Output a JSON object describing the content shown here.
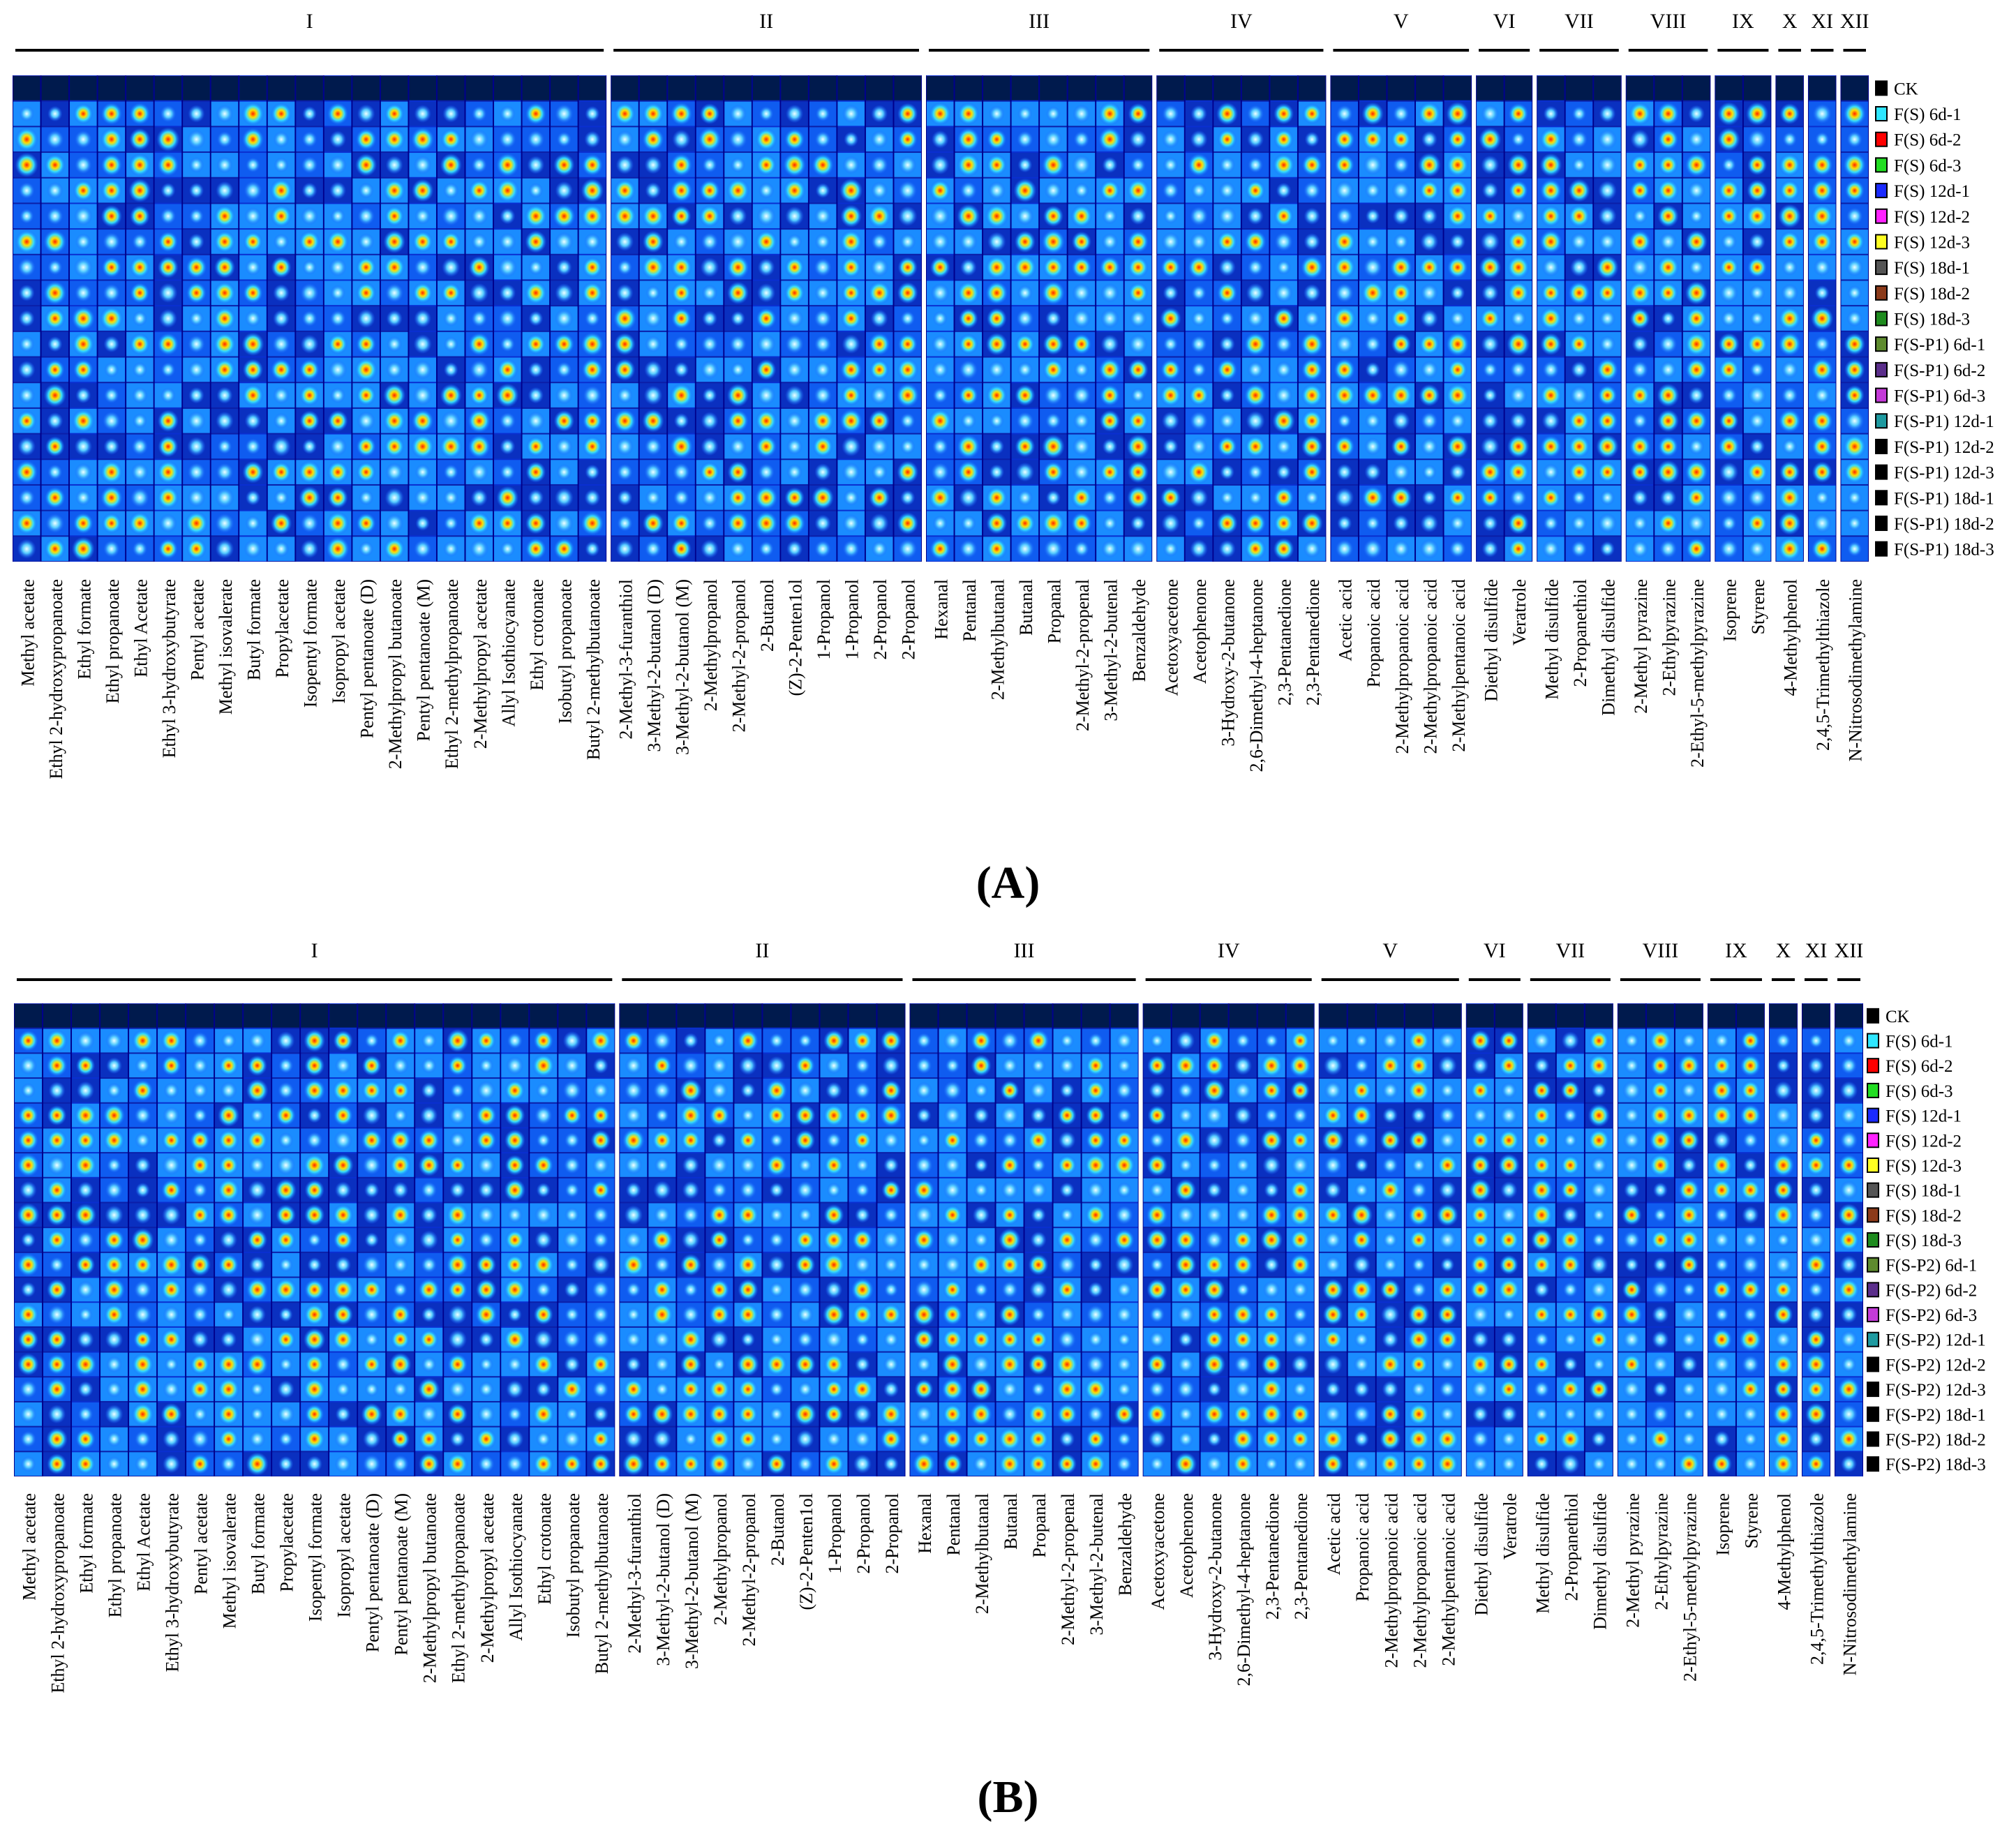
{
  "figure": {
    "colors": {
      "heat_low": "#00008b",
      "heat_mid": "#1e90ff",
      "heat_cyan": "#00e5ff",
      "heat_yellow": "#ffff00",
      "heat_red": "#ff2200",
      "bracket": "#000000"
    },
    "legend_colors": [
      "#000000",
      "#2ee6ff",
      "#ff0000",
      "#22dd22",
      "#1a2aff",
      "#ff22ff",
      "#ffff22",
      "#555555",
      "#8b3a1a",
      "#1e8b1e",
      "#5e8b2e",
      "#5b2e8b",
      "#c43ad8",
      "#1e9aa0",
      "#000000",
      "#000000",
      "#000000",
      "#000000",
      "#000000"
    ],
    "sub_colors": [
      "#f4a030",
      "#e8e030",
      "#ff2020",
      "#d0e020",
      "#50c8f0"
    ]
  },
  "chart_data": [
    {
      "type": "heatmap",
      "title": "(A)",
      "rows": [
        "CK",
        "F(S)  6d-1",
        "F(S)  6d-2",
        "F(S)  6d-3",
        "F(S)  12d-1",
        "F(S)  12d-2",
        "F(S)  12d-3",
        "F(S)  18d-1",
        "F(S)  18d-2",
        "F(S)  18d-3",
        "F(S-P1)  6d-1",
        "F(S-P1)  6d-2",
        "F(S-P1)  6d-3",
        "F(S-P1)  12d-1",
        "F(S-P1)  12d-2",
        "F(S-P1)  12d-3",
        "F(S-P1)  18d-1",
        "F(S-P1)  18d-2",
        "F(S-P1)  18d-3"
      ],
      "groups": [
        {
          "name": "I",
          "columns": [
            "Methyl acetate",
            "Ethyl 2-hydroxypropanoate",
            "Ethyl formate",
            "Ethyl propanoate",
            "Ethyl Acetate",
            "Ethyl 3-hydroxybutyrate",
            "Pentyl acetate",
            "Methyl isovalerate",
            "Butyl formate",
            "Propylacetate",
            "Isopentyl formate",
            "Isopropyl acetate",
            "Pentyl pentanoate  (D)",
            "2-Methylpropyl butanoate",
            "Pentyl pentanoate  (M)",
            "Ethyl 2-methylpropanoate",
            "2-Methylpropyl acetate",
            "Allyl Isothiocyanate",
            "Ethyl crotonate",
            "Isobutyl propanoate",
            "Butyl 2-methylbutanoate"
          ]
        },
        {
          "name": "II",
          "columns": [
            "2-Methyl-3-furanthiol",
            "3-Methyl-2-butanol (D)",
            "3-Methyl-2-butanol (M)",
            "2-Methylpropanol",
            "2-Methyl-2-propanol",
            "2-Butanol",
            "(Z)-2-Penten1ol",
            "1-Propanol",
            "1-Propanol",
            "2-Propanol",
            "2-Propanol"
          ]
        },
        {
          "name": "III",
          "columns": [
            "Hexanal",
            "Pentanal",
            "2-Methylbutanal",
            "Butanal",
            "Propanal",
            "2-Methyl-2-propenal",
            "3-Methyl-2-butenal",
            "Benzaldehyde"
          ]
        },
        {
          "name": "IV",
          "columns": [
            "Acetoxyacetone",
            "Acetophenone",
            "3-Hydroxy-2-butanone",
            "2,6-Dimethyl-4-heptanone",
            "2,3-Pentanedione",
            "2,3-Pentanedione"
          ]
        },
        {
          "name": "V",
          "columns": [
            "Acetic acid",
            "Propanoic acid",
            "2-Methylpropanoic acid",
            "2-Methylpropanoic acid",
            "2-Methylpentanoic acid"
          ]
        },
        {
          "name": "VI",
          "columns": [
            "Diethyl disulfide",
            "Veratrole"
          ]
        },
        {
          "name": "VII",
          "columns": [
            "Methyl disulfide",
            "2-Propanethiol",
            "Dimethyl disulfide"
          ]
        },
        {
          "name": "VIII",
          "columns": [
            "2-Methyl pyrazine",
            "2-Ethylpyrazine",
            "2-Ethyl-5-methylpyrazine"
          ]
        },
        {
          "name": "IX",
          "columns": [
            "Isoprene",
            "Styrene"
          ]
        },
        {
          "name": "X",
          "columns": [
            "4-Methylphenol"
          ]
        },
        {
          "name": "XI",
          "columns": [
            "2,4,5-Trimethylthiazole"
          ]
        },
        {
          "name": "XII",
          "columns": [
            "N-Nitrosodimethylamine"
          ]
        }
      ]
    },
    {
      "type": "heatmap",
      "title": "(B)",
      "rows": [
        "CK",
        "F(S)  6d-1",
        "F(S)  6d-2",
        "F(S)  6d-3",
        "F(S)  12d-1",
        "F(S)  12d-2",
        "F(S)  12d-3",
        "F(S)  18d-1",
        "F(S)  18d-2",
        "F(S)  18d-3",
        "F(S-P2)  6d-1",
        "F(S-P2)  6d-2",
        "F(S-P2)  6d-3",
        "F(S-P2)  12d-1",
        "F(S-P2)  12d-2",
        "F(S-P2)  12d-3",
        "F(S-P2)  18d-1",
        "F(S-P2)  18d-2",
        "F(S-P2)  18d-3"
      ],
      "groups": [
        {
          "name": "I",
          "columns": [
            "Methyl acetate",
            "Ethyl 2-hydroxypropanoate",
            "Ethyl formate",
            "Ethyl propanoate",
            "Ethyl Acetate",
            "Ethyl 3-hydroxybutyrate",
            "Pentyl acetate",
            "Methyl isovalerate",
            "Butyl formate",
            "Propylacetate",
            "Isopentyl formate",
            "Isopropyl acetate",
            "Pentyl pentanoate  (D)",
            "Pentyl pentanoate  (M)",
            "2-Methylpropyl butanoate",
            "Ethyl 2-methylpropanoate",
            "2-Methylpropyl acetate",
            "Allyl Isothiocyanate",
            "Ethyl crotonate",
            "Isobutyl propanoate",
            "Butyl 2-methylbutanoate"
          ]
        },
        {
          "name": "II",
          "columns": [
            "2-Methyl-3-furanthiol",
            "3-Methyl-2-butanol (D)",
            "3-Methyl-2-butanol (M)",
            "2-Methylpropanol",
            "2-Methyl-2-propanol",
            "2-Butanol",
            "(Z)-2-Penten1ol",
            "1-Propanol",
            "2-Propanol",
            "2-Propanol"
          ]
        },
        {
          "name": "III",
          "columns": [
            "Hexanal",
            "Pentanal",
            "2-Methylbutanal",
            "Butanal",
            "Propanal",
            "2-Methyl-2-propenal",
            "3-Methyl-2-butenal",
            "Benzaldehyde"
          ]
        },
        {
          "name": "IV",
          "columns": [
            "Acetoxyacetone",
            "Acetophenone",
            "3-Hydroxy-2-butanone",
            "2,6-Dimethyl-4-heptanone",
            "2,3-Pentanedione",
            "2,3-Pentanedione"
          ]
        },
        {
          "name": "V",
          "columns": [
            "Acetic acid",
            "Propanoic acid",
            "2-Methylpropanoic acid",
            "2-Methylpropanoic acid",
            "2-Methylpentanoic acid"
          ]
        },
        {
          "name": "VI",
          "columns": [
            "Diethyl disulfide",
            "Veratrole"
          ]
        },
        {
          "name": "VII",
          "columns": [
            "Methyl disulfide",
            "2-Propanethiol",
            "Dimethyl disulfide"
          ]
        },
        {
          "name": "VIII",
          "columns": [
            "2-Methyl pyrazine",
            "2-Ethylpyrazine",
            "2-Ethyl-5-methylpyrazine"
          ]
        },
        {
          "name": "IX",
          "columns": [
            "Isoprene",
            "Styrene"
          ]
        },
        {
          "name": "X",
          "columns": [
            "4-Methylphenol"
          ]
        },
        {
          "name": "XI",
          "columns": [
            "2,4,5-Trimethylthiazole"
          ]
        },
        {
          "name": "XII",
          "columns": [
            "N-Nitrosodimethylamine"
          ]
        }
      ]
    }
  ]
}
